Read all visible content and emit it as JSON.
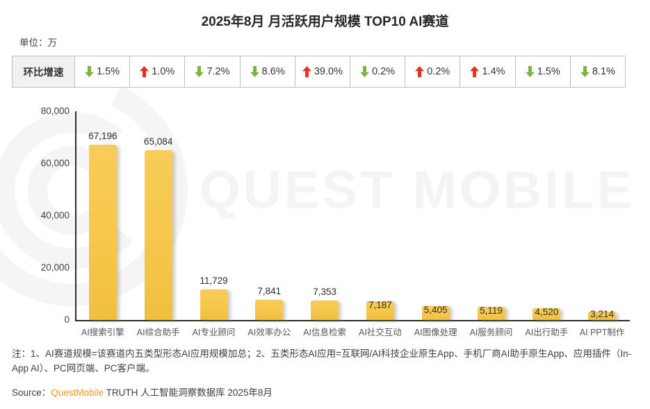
{
  "title": "2025年8月 月活跃用户规模 TOP10 AI赛道",
  "unit_label": "单位：万",
  "growth_row": {
    "header": "环比增速",
    "cells": [
      {
        "direction": "down",
        "value": "1.5%"
      },
      {
        "direction": "up",
        "value": "1.0%"
      },
      {
        "direction": "down",
        "value": "7.2%"
      },
      {
        "direction": "down",
        "value": "8.6%"
      },
      {
        "direction": "up",
        "value": "39.0%"
      },
      {
        "direction": "down",
        "value": "0.2%"
      },
      {
        "direction": "up",
        "value": "0.2%"
      },
      {
        "direction": "up",
        "value": "1.4%"
      },
      {
        "direction": "down",
        "value": "1.5%"
      },
      {
        "direction": "down",
        "value": "8.1%"
      }
    ],
    "colors": {
      "up": "#E5331F",
      "down": "#7CB342"
    }
  },
  "chart_data": {
    "type": "bar",
    "title": "2025年8月 月活跃用户规模 TOP10 AI赛道",
    "unit": "万",
    "categories": [
      "AI搜索引擎",
      "AI综合助手",
      "AI专业顾问",
      "AI效率办公",
      "AI信息检索",
      "AI社交互动",
      "AI图像处理",
      "AI服务顾问",
      "AI出行助手",
      "AI PPT制作"
    ],
    "values": [
      67196,
      65084,
      11729,
      7841,
      7353,
      7187,
      5405,
      5119,
      4520,
      3214
    ],
    "value_labels": [
      "67,196",
      "65,084",
      "11,729",
      "7,841",
      "7,353",
      "7,187",
      "5,405",
      "5,119",
      "4,520",
      "3,214"
    ],
    "mom_growth_pct": [
      "-1.5%",
      "+1.0%",
      "-7.2%",
      "-8.6%",
      "+39.0%",
      "-0.2%",
      "+0.2%",
      "+1.4%",
      "-1.5%",
      "-8.1%"
    ],
    "label_placement": [
      "above",
      "above",
      "above",
      "above",
      "above",
      "overlap",
      "overlap",
      "overlap",
      "overlap",
      "overlap"
    ],
    "ylim": [
      0,
      80000
    ],
    "yticks": [
      "80,000",
      "60,000",
      "40,000",
      "20,000",
      "0"
    ],
    "ylabel": "",
    "xlabel": "",
    "grid": false,
    "legend": "none",
    "bar_color": "#F6C74B"
  },
  "watermark": {
    "text": "QUEST MOBILE",
    "logo": "questmobile-circle-logo",
    "color": "#F4F4F4"
  },
  "footnote": {
    "text": "注：1、AI赛道规模=该赛道内五类型形态AI应用规模加总；2、五类形态AI应用=互联网/AI科技企业原生App、手机厂商AI助手原生App、应用插件（In-App AI）、PC网页端、PC客户端。"
  },
  "source": {
    "prefix": "Source：",
    "brand": "QuestMobile",
    "suffix": " TRUTH 人工智能洞察数据库 2025年8月",
    "brand_color": "#F7941D"
  }
}
